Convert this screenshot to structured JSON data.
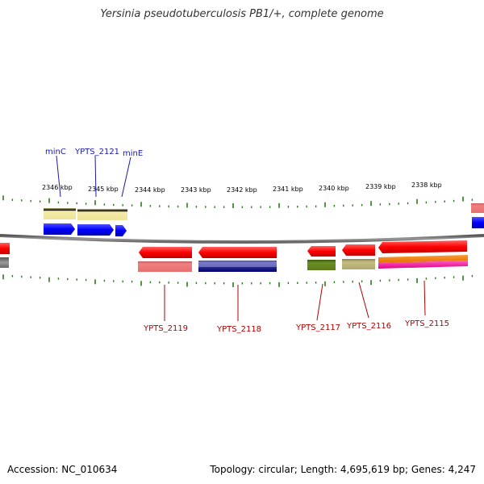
{
  "title": "Yersinia pseudotuberculosis PB1/+, complete genome",
  "footer": {
    "accession": "Accession: NC_010634",
    "summary": "Topology: circular; Length: 4,695,619 bp; Genes: 4,247"
  },
  "colors": {
    "backbone": "#8c8c8c",
    "tick": "#2a7a1a",
    "gene_red": "#ff0000",
    "gene_blue": "#0000ff",
    "label_blue": "#1a1aa8",
    "label_red": "#b00000"
  },
  "ticks": [
    {
      "label": "2346 kbp"
    },
    {
      "label": "2345 kbp"
    },
    {
      "label": "2344 kbp"
    },
    {
      "label": "2343 kbp"
    },
    {
      "label": "2342 kbp"
    },
    {
      "label": "2341 kbp"
    },
    {
      "label": "2340 kbp"
    },
    {
      "label": "2339 kbp"
    },
    {
      "label": "2338 kbp"
    }
  ],
  "top_genes": [
    {
      "label": "minC"
    },
    {
      "label": "YPTS_2121"
    },
    {
      "label": "minE"
    }
  ],
  "bottom_genes": [
    {
      "label": "YPTS_2119"
    },
    {
      "label": "YPTS_2118"
    },
    {
      "label": "YPTS_2117"
    },
    {
      "label": "YPTS_2116"
    },
    {
      "label": "YPTS_2115"
    }
  ]
}
